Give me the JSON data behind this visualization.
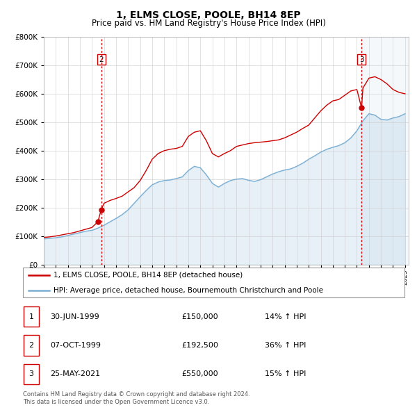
{
  "title": "1, ELMS CLOSE, POOLE, BH14 8EP",
  "subtitle": "Price paid vs. HM Land Registry's House Price Index (HPI)",
  "ylim": [
    0,
    800000
  ],
  "yticks": [
    0,
    100000,
    200000,
    300000,
    400000,
    500000,
    600000,
    700000,
    800000
  ],
  "xlim_start": 1995.3,
  "xlim_end": 2025.3,
  "sale_color": "#cc0000",
  "hpi_color": "#7BAFD4",
  "vline_color": "#cc0000",
  "transactions": [
    {
      "date_num": 1999.49,
      "price": 150000,
      "label": "1"
    },
    {
      "date_num": 1999.77,
      "price": 192500,
      "label": "2"
    },
    {
      "date_num": 2021.39,
      "price": 550000,
      "label": "3"
    }
  ],
  "vlines": [
    1999.77,
    2021.39
  ],
  "table_rows": [
    {
      "num": "1",
      "date": "30-JUN-1999",
      "price": "£150,000",
      "hpi": "14% ↑ HPI"
    },
    {
      "num": "2",
      "date": "07-OCT-1999",
      "price": "£192,500",
      "hpi": "36% ↑ HPI"
    },
    {
      "num": "3",
      "date": "25-MAY-2021",
      "price": "£550,000",
      "hpi": "15% ↑ HPI"
    }
  ],
  "legend_line1": "1, ELMS CLOSE, POOLE, BH14 8EP (detached house)",
  "legend_line2": "HPI: Average price, detached house, Bournemouth Christchurch and Poole",
  "footnote": "Contains HM Land Registry data © Crown copyright and database right 2024.\nThis data is licensed under the Open Government Licence v3.0.",
  "sale_line_years": [
    1995.0,
    1995.5,
    1996.0,
    1996.5,
    1997.0,
    1997.5,
    1998.0,
    1998.5,
    1999.0,
    1999.49,
    1999.77,
    2000.0,
    2000.5,
    2001.0,
    2001.5,
    2002.0,
    2002.5,
    2003.0,
    2003.5,
    2004.0,
    2004.5,
    2005.0,
    2005.5,
    2006.0,
    2006.5,
    2007.0,
    2007.5,
    2008.0,
    2008.5,
    2009.0,
    2009.5,
    2010.0,
    2010.5,
    2011.0,
    2011.5,
    2012.0,
    2012.5,
    2013.0,
    2013.5,
    2014.0,
    2014.5,
    2015.0,
    2015.5,
    2016.0,
    2016.5,
    2017.0,
    2017.5,
    2018.0,
    2018.5,
    2019.0,
    2019.5,
    2020.0,
    2020.5,
    2021.0,
    2021.39,
    2021.5,
    2022.0,
    2022.5,
    2023.0,
    2023.5,
    2024.0,
    2024.5,
    2025.0
  ],
  "sale_line_prices": [
    95000,
    97000,
    100000,
    104000,
    108000,
    112000,
    118000,
    124000,
    130000,
    150000,
    192500,
    215000,
    225000,
    232000,
    240000,
    255000,
    270000,
    295000,
    330000,
    370000,
    390000,
    400000,
    405000,
    408000,
    415000,
    450000,
    465000,
    470000,
    435000,
    390000,
    378000,
    390000,
    400000,
    415000,
    420000,
    425000,
    428000,
    430000,
    432000,
    435000,
    438000,
    445000,
    455000,
    465000,
    478000,
    490000,
    515000,
    540000,
    560000,
    575000,
    580000,
    595000,
    610000,
    615000,
    550000,
    620000,
    655000,
    660000,
    650000,
    635000,
    615000,
    605000,
    600000
  ],
  "hpi_line_years": [
    1995.0,
    1995.5,
    1996.0,
    1996.5,
    1997.0,
    1997.5,
    1998.0,
    1998.5,
    1999.0,
    1999.5,
    2000.0,
    2000.5,
    2001.0,
    2001.5,
    2002.0,
    2002.5,
    2003.0,
    2003.5,
    2004.0,
    2004.5,
    2005.0,
    2005.5,
    2006.0,
    2006.5,
    2007.0,
    2007.5,
    2008.0,
    2008.5,
    2009.0,
    2009.5,
    2010.0,
    2010.5,
    2011.0,
    2011.5,
    2012.0,
    2012.5,
    2013.0,
    2013.5,
    2014.0,
    2014.5,
    2015.0,
    2015.5,
    2016.0,
    2016.5,
    2017.0,
    2017.5,
    2018.0,
    2018.5,
    2019.0,
    2019.5,
    2020.0,
    2020.5,
    2021.0,
    2021.5,
    2022.0,
    2022.5,
    2023.0,
    2023.5,
    2024.0,
    2024.5,
    2025.0
  ],
  "hpi_line_prices": [
    90000,
    92000,
    94000,
    97000,
    102000,
    107000,
    112000,
    117000,
    120000,
    128000,
    138000,
    150000,
    162000,
    175000,
    192000,
    215000,
    238000,
    260000,
    280000,
    290000,
    295000,
    297000,
    302000,
    308000,
    330000,
    345000,
    340000,
    315000,
    285000,
    272000,
    285000,
    295000,
    300000,
    302000,
    296000,
    292000,
    298000,
    308000,
    318000,
    326000,
    332000,
    336000,
    345000,
    356000,
    370000,
    382000,
    395000,
    405000,
    412000,
    418000,
    428000,
    445000,
    470000,
    505000,
    530000,
    525000,
    510000,
    508000,
    515000,
    520000,
    530000
  ]
}
